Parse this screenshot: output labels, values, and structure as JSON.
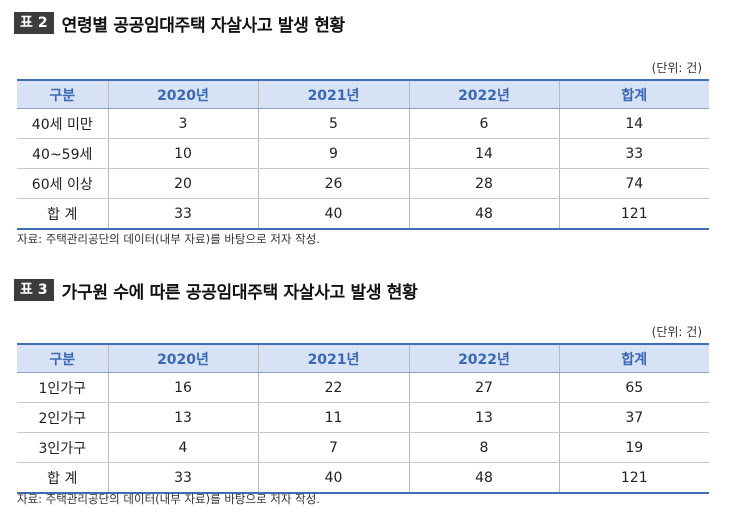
{
  "tables": [
    {
      "tag_label": "표",
      "tag_number": "2",
      "title": "연령별 공공임대주택 자살사고 발생 현황",
      "unit": "(단위: 건)",
      "headers": [
        "구분",
        "2020년",
        "2021년",
        "2022년",
        "합계"
      ],
      "rows": [
        [
          "40세 미만",
          "3",
          "5",
          "6",
          "14"
        ],
        [
          "40~59세",
          "10",
          "9",
          "14",
          "33"
        ],
        [
          "60세 이상",
          "20",
          "26",
          "28",
          "74"
        ],
        [
          "합 계",
          "33",
          "40",
          "48",
          "121"
        ]
      ],
      "source": "자료: 주택관리공단의 데이터(내부 자료)를 바탕으로 저자 작성."
    },
    {
      "tag_label": "표",
      "tag_number": "3",
      "title": "가구원 수에 따른 공공임대주택 자살사고 발생 현황",
      "unit": "(단위: 건)",
      "headers": [
        "구분",
        "2020년",
        "2021년",
        "2022년",
        "합계"
      ],
      "rows": [
        [
          "1인가구",
          "16",
          "22",
          "27",
          "65"
        ],
        [
          "2인가구",
          "13",
          "11",
          "13",
          "37"
        ],
        [
          "3인가구",
          "4",
          "7",
          "8",
          "19"
        ],
        [
          "합 계",
          "33",
          "40",
          "48",
          "121"
        ]
      ],
      "source": "자료: 주택관리공단의 데이터(내부 자료)를 바탕으로 저자 작성."
    }
  ]
}
